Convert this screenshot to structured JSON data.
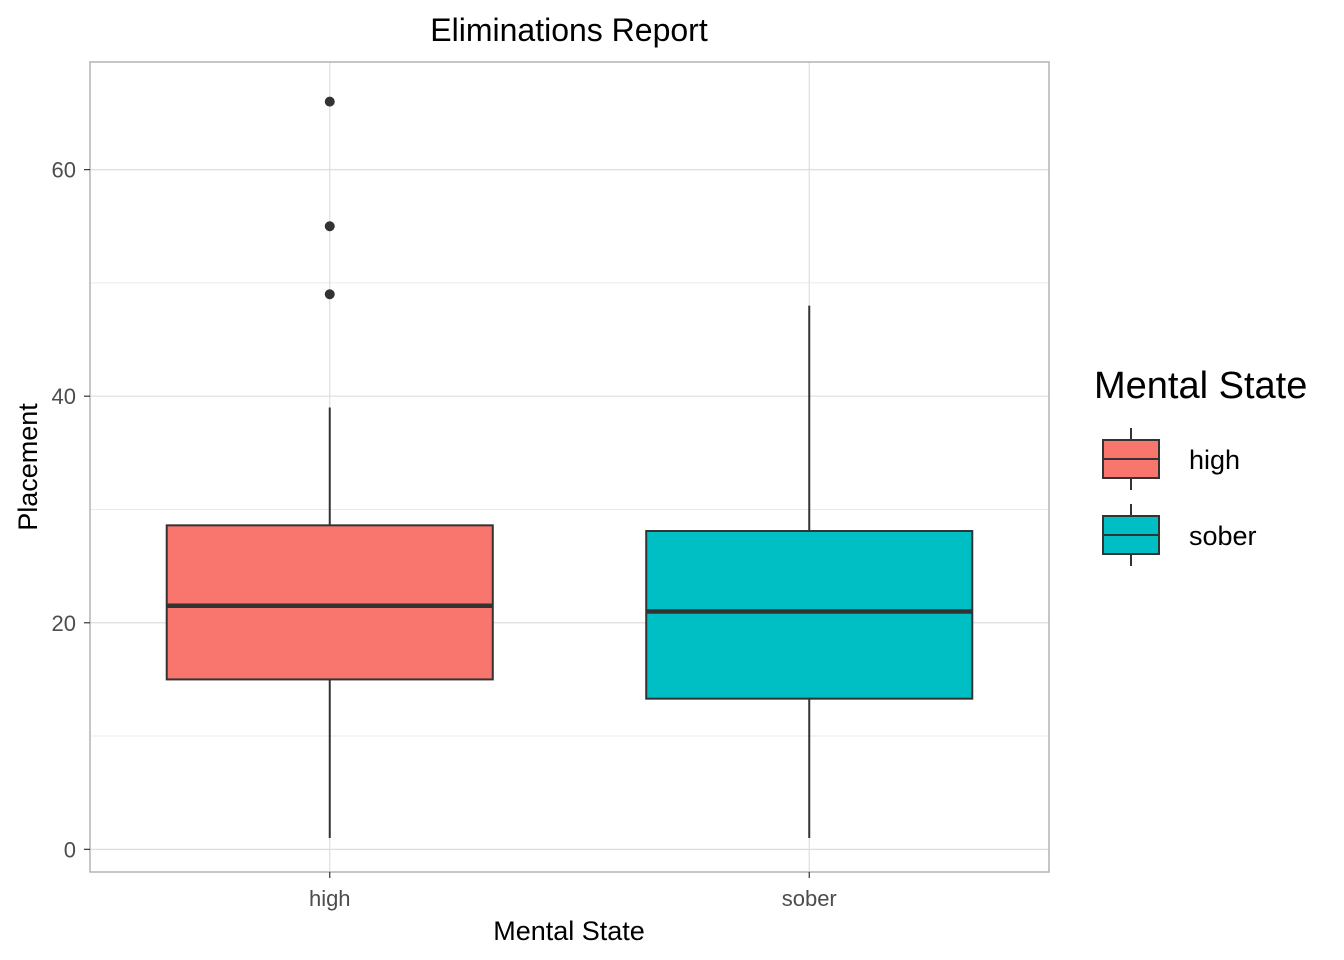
{
  "chart_data": {
    "type": "box",
    "title": "Eliminations Report",
    "xlabel": "Mental State",
    "ylabel": "Placement",
    "categories": [
      "high",
      "sober"
    ],
    "ylim": [
      -2,
      69.5
    ],
    "y_ticks": [
      0,
      20,
      40,
      60
    ],
    "y_minor_ticks": [
      10,
      30,
      50
    ],
    "grid": true,
    "series": [
      {
        "name": "high",
        "color": "#F8766D",
        "min": 1,
        "q1": 15,
        "median": 21.5,
        "q3": 28.6,
        "max": 39,
        "outliers": [
          49,
          55,
          66
        ]
      },
      {
        "name": "sober",
        "color": "#00BFC4",
        "min": 1,
        "q1": 13.3,
        "median": 21,
        "q3": 28.1,
        "max": 48,
        "outliers": []
      }
    ],
    "legend": {
      "title": "Mental State",
      "position": "right",
      "entries": [
        {
          "label": "high",
          "color": "#F8766D"
        },
        {
          "label": "sober",
          "color": "#00BFC4"
        }
      ]
    }
  }
}
